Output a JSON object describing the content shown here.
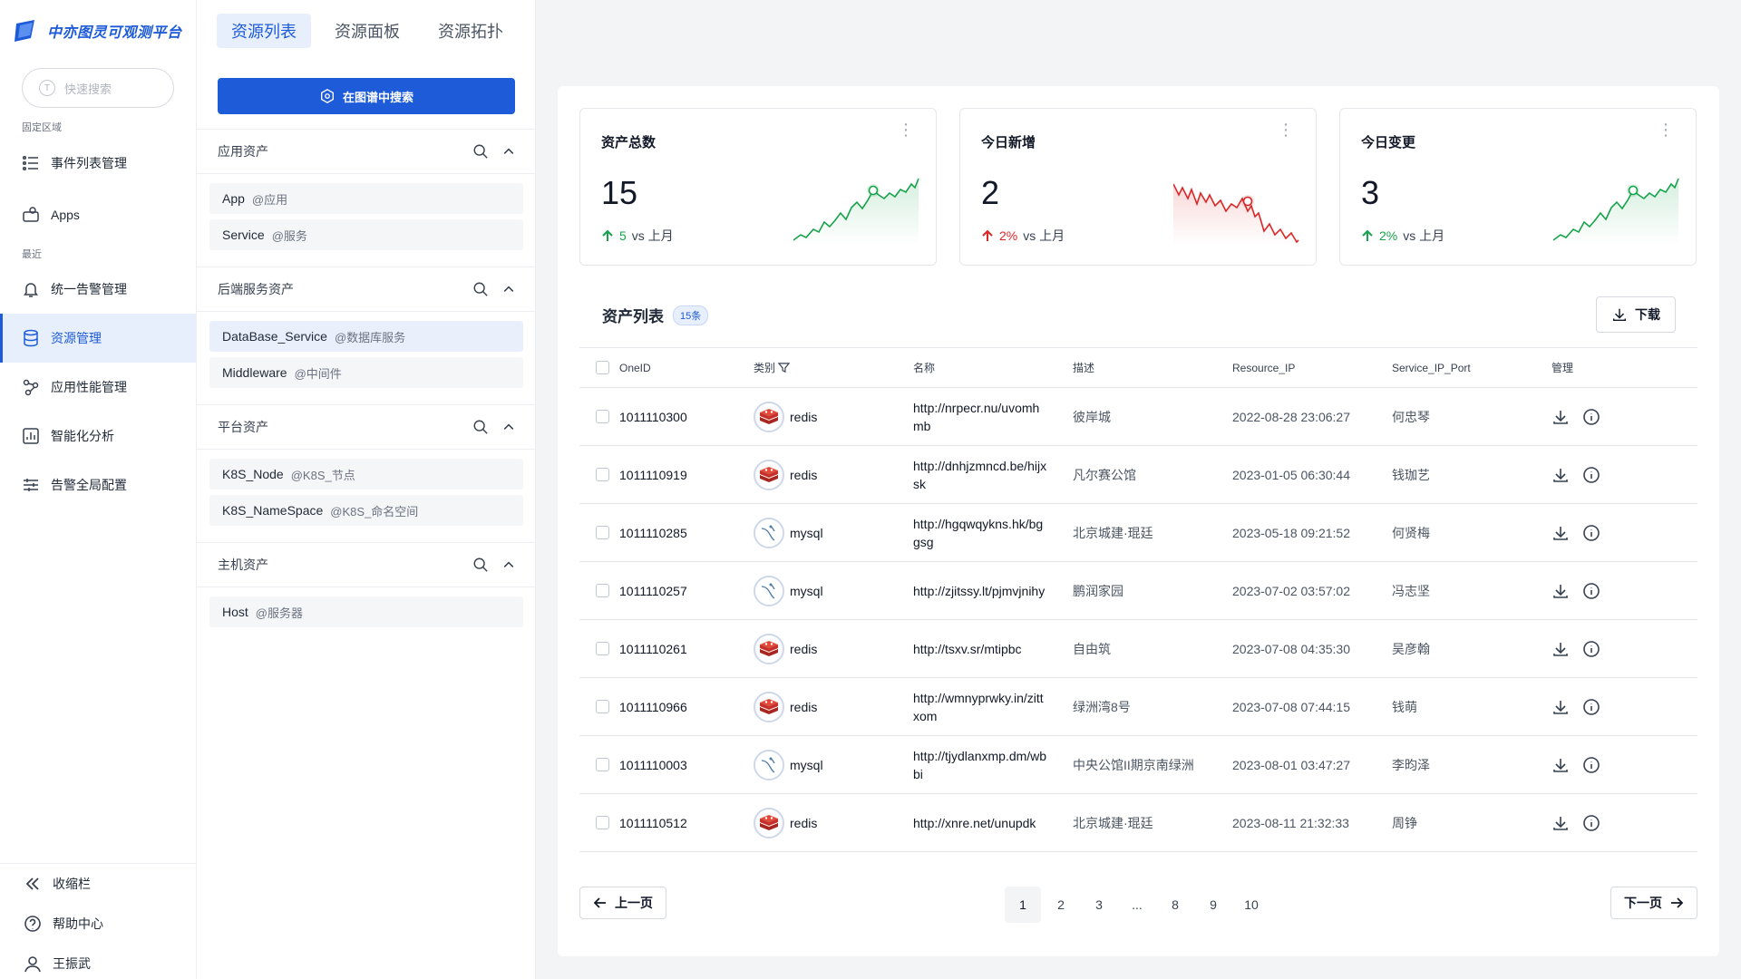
{
  "sidebar": {
    "brand": "中亦图灵可观测平台",
    "search_placeholder": "快速搜索",
    "section_fixed": "固定区域",
    "section_recent": "最近",
    "items": [
      {
        "label": "事件列表管理"
      },
      {
        "label": "Apps"
      },
      {
        "label": "统一告警管理"
      },
      {
        "label": "资源管理"
      },
      {
        "label": "应用性能管理"
      },
      {
        "label": "智能化分析"
      },
      {
        "label": "告警全局配置"
      }
    ],
    "bottom": {
      "collapse": "收缩栏",
      "help": "帮助中心",
      "user": "王振武"
    },
    "active_color": "#1d5bd8"
  },
  "tabs": [
    {
      "label": "资源列表",
      "active": true
    },
    {
      "label": "资源面板",
      "active": false
    },
    {
      "label": "资源拓扑",
      "active": false
    }
  ],
  "graph_search_label": "在图谱中搜索",
  "groups": [
    {
      "title": "应用资产",
      "items": [
        {
          "name": "App",
          "tag": "@应用"
        },
        {
          "name": "Service",
          "tag": "@服务"
        }
      ]
    },
    {
      "title": "后端服务资产",
      "items": [
        {
          "name": "DataBase_Service",
          "tag": "@数据库服务"
        },
        {
          "name": "Middleware",
          "tag": "@中间件"
        }
      ]
    },
    {
      "title": "平台资产",
      "items": [
        {
          "name": "K8S_Node",
          "tag": "@K8S_节点"
        },
        {
          "name": "K8S_NameSpace",
          "tag": "@K8S_命名空间"
        }
      ]
    },
    {
      "title": "主机资产",
      "items": [
        {
          "name": "Host",
          "tag": "@服务器"
        }
      ]
    }
  ],
  "stats": [
    {
      "title": "资产总数",
      "value": "15",
      "delta": "5",
      "vs": "vs 上月",
      "trend": "up",
      "color": "#16a34a"
    },
    {
      "title": "今日新增",
      "value": "2",
      "delta": "2%",
      "vs": "vs 上月",
      "trend": "down",
      "color": "#dc2626"
    },
    {
      "title": "今日变更",
      "value": "3",
      "delta": "2%",
      "vs": "vs 上月",
      "trend": "up",
      "color": "#16a34a"
    }
  ],
  "list": {
    "title": "资产列表",
    "count_badge": "15条",
    "download_label": "下载",
    "columns": [
      "OneID",
      "类别",
      "名称",
      "描述",
      "Resource_IP",
      "Service_IP_Port",
      "管理"
    ],
    "rows": [
      {
        "id": "1011110300",
        "cat": "redis",
        "name": "http://nrpecr.nu/uvomhmb",
        "desc": "彼岸城",
        "ip": "2022-08-28 23:06:27",
        "port": "何忠琴"
      },
      {
        "id": "1011110919",
        "cat": "redis",
        "name": "http://dnhjzmncd.be/hijxsk",
        "desc": "凡尔赛公馆",
        "ip": "2023-01-05 06:30:44",
        "port": "钱珈艺"
      },
      {
        "id": "1011110285",
        "cat": "mysql",
        "name": "http://hgqwqykns.hk/bggsg",
        "desc": "北京城建·琨廷",
        "ip": "2023-05-18 09:21:52",
        "port": "何贤梅"
      },
      {
        "id": "1011110257",
        "cat": "mysql",
        "name": "http://zjitssy.lt/pjmvjnihy",
        "desc": "鹏润家园",
        "ip": "2023-07-02 03:57:02",
        "port": "冯志坚"
      },
      {
        "id": "1011110261",
        "cat": "redis",
        "name": "http://tsxv.sr/mtipbc",
        "desc": "自由筑",
        "ip": "2023-07-08 04:35:30",
        "port": "吴彦翰"
      },
      {
        "id": "1011110966",
        "cat": "redis",
        "name": "http://wmnyprwky.in/zittxom",
        "desc": "绿洲湾8号",
        "ip": "2023-07-08 07:44:15",
        "port": "钱萌"
      },
      {
        "id": "1011110003",
        "cat": "mysql",
        "name": "http://tjydlanxmp.dm/wbbi",
        "desc": "中央公馆II期京南绿洲",
        "ip": "2023-08-01 03:47:27",
        "port": "李昀泽"
      },
      {
        "id": "1011110512",
        "cat": "redis",
        "name": "http://xnre.net/unupdk",
        "desc": "北京城建·琨廷",
        "ip": "2023-08-11 21:32:33",
        "port": "周铮"
      }
    ]
  },
  "pagination": {
    "prev": "上一页",
    "next": "下一页",
    "pages": [
      "1",
      "2",
      "3",
      "...",
      "8",
      "9",
      "10"
    ],
    "current": "1"
  }
}
